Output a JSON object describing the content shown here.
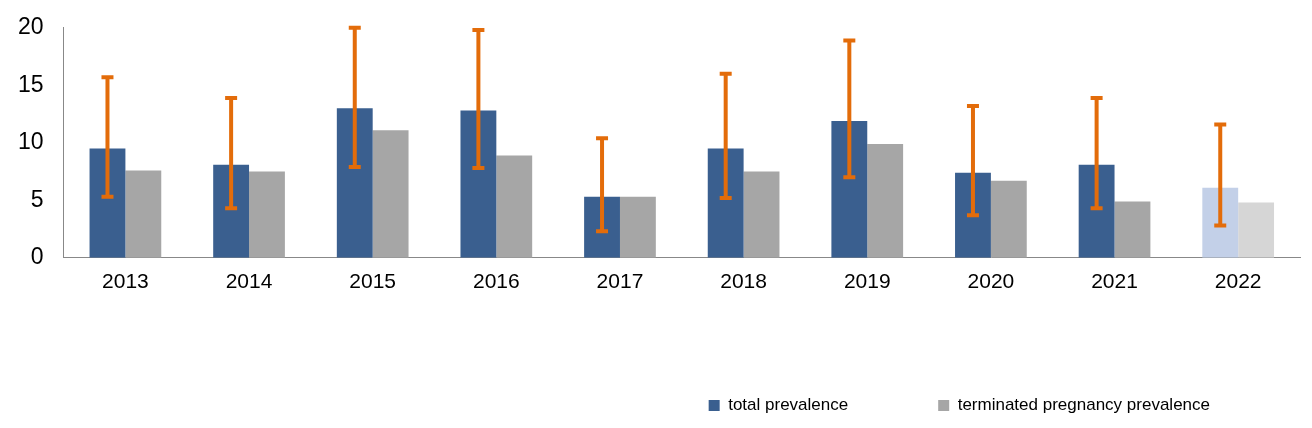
{
  "chart_data": {
    "type": "bar",
    "categories": [
      "2013",
      "2014",
      "2015",
      "2016",
      "2017",
      "2018",
      "2019",
      "2020",
      "2021",
      "2022"
    ],
    "series": [
      {
        "name": "total prevalence",
        "color": "#3a5f8f",
        "colors": [
          "#3a5f8f",
          "#3a5f8f",
          "#3a5f8f",
          "#3a5f8f",
          "#3a5f8f",
          "#3a5f8f",
          "#3a5f8f",
          "#3a5f8f",
          "#3a5f8f",
          "#c3d0e8"
        ],
        "values": [
          9.5,
          8.1,
          13.0,
          12.8,
          5.3,
          9.5,
          11.9,
          7.4,
          8.1,
          6.1
        ],
        "error_low": [
          5.3,
          4.3,
          7.9,
          7.8,
          2.3,
          5.2,
          7.0,
          3.7,
          4.3,
          2.8
        ],
        "error_high": [
          15.7,
          13.9,
          20.0,
          19.8,
          10.4,
          16.0,
          18.9,
          13.2,
          13.9,
          11.6
        ]
      },
      {
        "name": "terminated pregnancy prevalence",
        "color": "#a6a6a6",
        "colors": [
          "#a6a6a6",
          "#a6a6a6",
          "#a6a6a6",
          "#a6a6a6",
          "#a6a6a6",
          "#a6a6a6",
          "#a6a6a6",
          "#a6a6a6",
          "#a6a6a6",
          "#d6d6d6"
        ],
        "values": [
          7.6,
          7.5,
          11.1,
          8.9,
          5.3,
          7.5,
          9.9,
          6.7,
          4.9,
          4.8
        ]
      }
    ],
    "ylim": [
      0,
      20
    ],
    "yticks": [
      0,
      5,
      10,
      15,
      20
    ],
    "grid": false,
    "legend": "bottom-right"
  }
}
